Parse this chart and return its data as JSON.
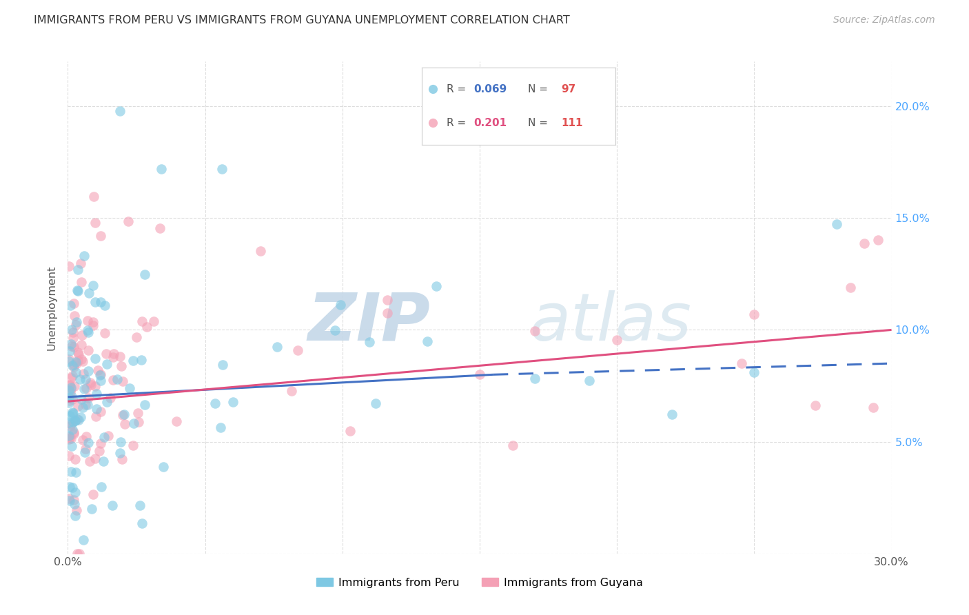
{
  "title": "IMMIGRANTS FROM PERU VS IMMIGRANTS FROM GUYANA UNEMPLOYMENT CORRELATION CHART",
  "source": "Source: ZipAtlas.com",
  "ylabel": "Unemployment",
  "xlim": [
    0.0,
    0.3
  ],
  "ylim": [
    0.0,
    0.22
  ],
  "color_peru": "#7ec8e3",
  "color_guyana": "#f4a0b5",
  "trendline_peru_color": "#4472c4",
  "trendline_guyana_color": "#e05080",
  "background_color": "#ffffff",
  "grid_color": "#dddddd",
  "legend_r1_val": "0.069",
  "legend_n1_val": "97",
  "legend_r2_val": "0.201",
  "legend_n2_val": "111",
  "legend_n_color": "#e05050",
  "legend_r_color_peru": "#4472c4",
  "legend_r_color_guyana": "#e05080",
  "right_tick_color": "#4da6ff"
}
